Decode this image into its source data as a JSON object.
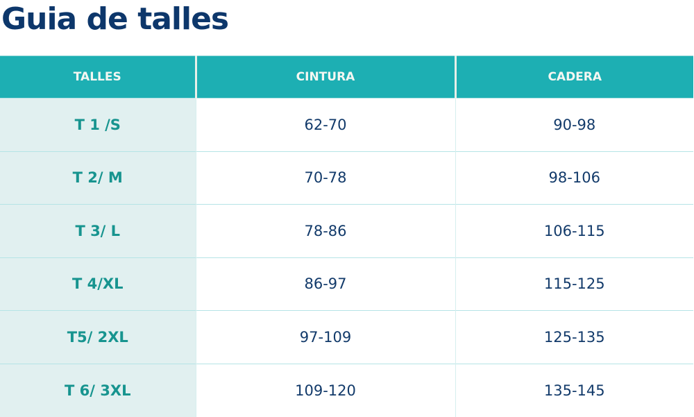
{
  "title": "Guia de talles",
  "colors": {
    "header": "#1dafb3",
    "size_column": "#e1f0f0",
    "size_text": "#17948f",
    "value_text": "#123a6a",
    "title": "#0d376b"
  },
  "table": {
    "headers": [
      "TALLES",
      "CINTURA",
      "CADERA"
    ],
    "rows": [
      [
        "T 1 /S",
        "62-70",
        "90-98"
      ],
      [
        "T 2/ M",
        "70-78",
        "98-106"
      ],
      [
        "T 3/ L",
        "78-86",
        "106-115"
      ],
      [
        "T 4/XL",
        "86-97",
        "115-125"
      ],
      [
        "T5/ 2XL",
        "97-109",
        "125-135"
      ],
      [
        "T 6/ 3XL",
        "109-120",
        "135-145"
      ]
    ]
  }
}
